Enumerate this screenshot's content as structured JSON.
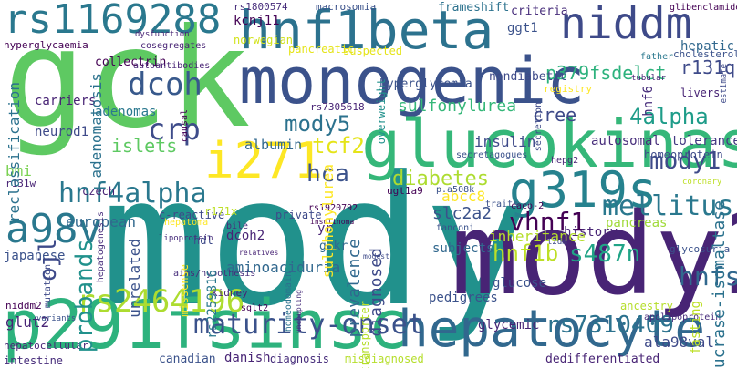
{
  "cloud": {
    "words": [
      {
        "id": "gck",
        "text": "gck",
        "color": "#5ec962"
      },
      {
        "id": "mody",
        "text": "mody",
        "color": "#21918c"
      },
      {
        "id": "mody2",
        "text": "mody2",
        "color": "#482475"
      },
      {
        "id": "monogenic",
        "text": "monogenic",
        "color": "#3b528b"
      },
      {
        "id": "glucokinase",
        "text": "glucokinase",
        "color": "#35b779"
      },
      {
        "id": "p291fsinsc",
        "text": "p291fsinsc",
        "color": "#2db27d"
      },
      {
        "id": "hepatocyte",
        "text": "hepatocyte",
        "color": "#31688e"
      },
      {
        "id": "hnf1beta",
        "text": "hnf1beta",
        "color": "#2c728e"
      },
      {
        "id": "niddm",
        "text": "niddm",
        "color": "#3e4a89"
      },
      {
        "id": "rs1169288",
        "text": "rs1169288",
        "color": "#2a788e"
      },
      {
        "id": "g319s",
        "text": "g319s",
        "color": "#26828e"
      },
      {
        "id": "i271",
        "text": "i271",
        "color": "#fde725"
      },
      {
        "id": "rs2464196",
        "text": "rs2464196",
        "color": "#addc30"
      },
      {
        "id": "hnf4alpha",
        "text": "hnf4alpha",
        "color": "#2a788e"
      },
      {
        "id": "mellitus",
        "text": "mellitus",
        "color": "#2a788e"
      },
      {
        "id": "maturity-onset",
        "text": "maturity-onset",
        "color": "#3b528b"
      },
      {
        "id": "dcoh",
        "text": "dcoh",
        "color": "#38598c"
      },
      {
        "id": "crp",
        "text": "crp",
        "color": "#3e4c8a"
      },
      {
        "id": "mody5",
        "text": "mody5",
        "color": "#2c728e"
      },
      {
        "id": "mody1",
        "text": "mody1",
        "color": "#3e4a89"
      },
      {
        "id": "4alpha",
        "text": "4alpha",
        "color": "#1e9c89"
      },
      {
        "id": "a98v",
        "text": "a98v",
        "color": "#2a788e"
      },
      {
        "id": "hnfs",
        "text": "hnfs",
        "color": "#31688e"
      },
      {
        "id": "s487n",
        "text": "s487n",
        "color": "#20a486"
      },
      {
        "id": "rs7310409",
        "text": "rs7310409",
        "color": "#2c728e"
      },
      {
        "id": "vhnf1",
        "text": "vhnf1",
        "color": "#440154"
      },
      {
        "id": "hca",
        "text": "hca",
        "color": "#3b528b"
      },
      {
        "id": "tcf2",
        "text": "tcf2",
        "color": "#e5e419"
      },
      {
        "id": "diabetes",
        "text": "diabetes",
        "color": "#addc30"
      },
      {
        "id": "p379fsdelct",
        "text": "p379fsdelct",
        "color": "#2db27d"
      },
      {
        "id": "hnf1b",
        "text": "hnf1b",
        "color": "#bddf26"
      },
      {
        "id": "ojl",
        "text": "ojl",
        "color": "#3e4a89"
      },
      {
        "id": "cree",
        "text": "cree",
        "color": "#21918c"
      },
      {
        "id": "sulfonylurea",
        "text": "sulfonylurea",
        "color": "#35b779"
      },
      {
        "id": "probands",
        "text": "probands",
        "color": "#3e4a89"
      },
      {
        "id": "r131q",
        "text": "r131q",
        "color": "#3e4a89"
      },
      {
        "id": "kcnj11",
        "text": "kcnj11",
        "color": "#440154"
      },
      {
        "id": "ggt1",
        "text": "ggt1",
        "color": "#3b528b"
      },
      {
        "id": "frameshift",
        "text": "frameshift",
        "color": "#2c728e"
      },
      {
        "id": "criteria",
        "text": "criteria",
        "color": "#472d7b"
      },
      {
        "id": "hepatic",
        "text": "hepatic",
        "color": "#31688e"
      },
      {
        "id": "hyperglycemia",
        "text": "hyperglycemia",
        "color": "#3b528b"
      },
      {
        "id": "nondiabetic",
        "text": "nondiabetic",
        "color": "#3e4a89"
      },
      {
        "id": "collectrin",
        "text": "collectrin",
        "color": "#440154"
      },
      {
        "id": "adenomas",
        "text": "adenomas",
        "color": "#2a788e"
      },
      {
        "id": "adenomatosis",
        "text": "adenomatosis",
        "color": "#2c728e"
      },
      {
        "id": "carriers",
        "text": "carriers",
        "color": "#482475"
      },
      {
        "id": "reclassification",
        "text": "reclassification",
        "color": "#2c728e"
      },
      {
        "id": "islets",
        "text": "islets",
        "color": "#5ec962"
      },
      {
        "id": "insulin",
        "text": "insulin",
        "color": "#3e4a89"
      },
      {
        "id": "albumin",
        "text": "albumin",
        "color": "#31688e"
      },
      {
        "id": "autosomal",
        "text": "autosomal",
        "color": "#472d7b"
      },
      {
        "id": "tolerance",
        "text": "tolerance",
        "color": "#443983"
      },
      {
        "id": "homeoprotein",
        "text": "homeoprotein",
        "color": "#3e4a89"
      },
      {
        "id": "european",
        "text": "european",
        "color": "#31688e"
      },
      {
        "id": "czech",
        "text": "czech",
        "color": "#482475"
      },
      {
        "id": "abcc8",
        "text": "abcc8",
        "color": "#fde725"
      },
      {
        "id": "pancreas",
        "text": "pancreas",
        "color": "#a0da39"
      },
      {
        "id": "history",
        "text": "history",
        "color": "#482475"
      },
      {
        "id": "inheritance",
        "text": "inheritance",
        "color": "#b5de2b"
      },
      {
        "id": "slc2a2",
        "text": "slc2a2",
        "color": "#3b528b"
      },
      {
        "id": "subjects",
        "text": "subjects",
        "color": "#31688e"
      },
      {
        "id": "prevalence",
        "text": "prevalence",
        "color": "#31688e"
      },
      {
        "id": "diagnosed",
        "text": "diagnosed",
        "color": "#3e4a89"
      },
      {
        "id": "dcoh2",
        "text": "dcoh2",
        "color": "#482475"
      },
      {
        "id": "yr",
        "text": "yr",
        "color": "#482475"
      },
      {
        "id": "gckr",
        "text": "gckr",
        "color": "#31688e"
      },
      {
        "id": "sulphonylurea",
        "text": "sulphonylurea",
        "color": "#fde725"
      },
      {
        "id": "aminoaciduria",
        "text": "aminoaciduria",
        "color": "#31688e"
      },
      {
        "id": "unrelated",
        "text": "unrelated",
        "color": "#3b528b"
      },
      {
        "id": "japanese",
        "text": "japanese",
        "color": "#3b528b"
      },
      {
        "id": "glut2",
        "text": "glut2",
        "color": "#482475"
      },
      {
        "id": "glucose",
        "text": "glucose",
        "color": "#3b528b"
      },
      {
        "id": "pedigrees",
        "text": "pedigrees",
        "color": "#3b528b"
      },
      {
        "id": "glycemic",
        "text": "glycemic",
        "color": "#482475"
      },
      {
        "id": "ala98val",
        "text": "ala98val",
        "color": "#3e4a89"
      },
      {
        "id": "sucrase-isomaltase",
        "text": "sucrase-isomaltase",
        "color": "#2c728e"
      },
      {
        "id": "fasting",
        "text": "fasting",
        "color": "#bddf26"
      },
      {
        "id": "intestine",
        "text": "intestine",
        "color": "#472d7b"
      },
      {
        "id": "canadian",
        "text": "canadian",
        "color": "#3b528b"
      },
      {
        "id": "danish",
        "text": "danish",
        "color": "#482475"
      },
      {
        "id": "diagnosis",
        "text": "diagnosis",
        "color": "#472d7b"
      },
      {
        "id": "misdiagnosed",
        "text": "misdiagnosed",
        "color": "#b5de2b"
      },
      {
        "id": "dedifferentiated",
        "text": "dedifferentiated",
        "color": "#482475"
      },
      {
        "id": "rs2259816",
        "text": "rs2259816",
        "color": "#2a788e"
      },
      {
        "id": "hdl",
        "text": "hdl",
        "color": "#3e4a89"
      },
      {
        "id": "c-reactive",
        "text": "c-reactive",
        "color": "#3e4a89"
      },
      {
        "id": "private",
        "text": "private",
        "color": "#3e4a89"
      },
      {
        "id": "r171x",
        "text": "r171x",
        "color": "#bddf26"
      },
      {
        "id": "bmi",
        "text": "bmi",
        "color": "#7ad151"
      },
      {
        "id": "neurod1",
        "text": "neurod1",
        "color": "#3e4a89"
      },
      {
        "id": "hyperglycaemia",
        "text": "hyperglycaemia",
        "color": "#440154"
      },
      {
        "id": "rs1800574",
        "text": "rs1800574",
        "color": "#472d7b"
      },
      {
        "id": "macrosomia",
        "text": "macrosomia",
        "color": "#3b528b"
      },
      {
        "id": "rs1920792",
        "text": "rs1920792",
        "color": "#440154"
      },
      {
        "id": "pancreatic",
        "text": "pancreatic",
        "color": "#e5e419"
      },
      {
        "id": "suspected",
        "text": "suspected",
        "color": "#e5e419"
      },
      {
        "id": "norwegian",
        "text": "norwegian",
        "color": "#d2e21b"
      },
      {
        "id": "glibenclamide",
        "text": "glibenclamide",
        "color": "#440154"
      },
      {
        "id": "cholesterol",
        "text": "cholesterol",
        "color": "#3b528b"
      },
      {
        "id": "hnf6",
        "text": "hnf6",
        "color": "#472d7b"
      },
      {
        "id": "livers",
        "text": "livers",
        "color": "#482475"
      },
      {
        "id": "estimate",
        "text": "estimate",
        "color": "#3e4a89"
      },
      {
        "id": "father",
        "text": "father",
        "color": "#2a788e"
      },
      {
        "id": "registry",
        "text": "registry",
        "color": "#fde725"
      },
      {
        "id": "overweight",
        "text": "overweight",
        "color": "#21918c"
      },
      {
        "id": "hepatocellular",
        "text": "hepatocellular",
        "color": "#482475"
      },
      {
        "id": "variants",
        "text": "variants",
        "color": "#3b528b"
      },
      {
        "id": "niddm2",
        "text": "niddm2",
        "color": "#440154"
      },
      {
        "id": "r131w",
        "text": "r131w",
        "color": "#482475"
      },
      {
        "id": "mutation",
        "text": "mutation",
        "color": "#3e4a89"
      },
      {
        "id": "homeodomain",
        "text": "homeodomain",
        "color": "#2c728e"
      },
      {
        "id": "uncoupling",
        "text": "uncoupling",
        "color": "#472d7b"
      },
      {
        "id": "kidney",
        "text": "kidney",
        "color": "#482475"
      },
      {
        "id": "transporter",
        "text": "transporter",
        "color": "#b5de2b"
      },
      {
        "id": "insulinoma",
        "text": "insulinoma",
        "color": "#440154"
      },
      {
        "id": "ugt1a9",
        "text": "ugt1a9",
        "color": "#440154"
      },
      {
        "id": "p.a508k",
        "text": "p.a508k",
        "color": "#3b528b"
      },
      {
        "id": "sglt2",
        "text": "sglt2",
        "color": "#440154"
      },
      {
        "id": "glycosuria",
        "text": "glycosuria",
        "color": "#3b528b"
      },
      {
        "id": "apolipoprotein",
        "text": "apolipoprotein",
        "color": "#472d7b"
      },
      {
        "id": "coronary",
        "text": "coronary",
        "color": "#bddf26"
      },
      {
        "id": "hepatoma",
        "text": "hepatoma",
        "color": "#fde725"
      },
      {
        "id": "hepatogenesis",
        "text": "hepatogenesis",
        "color": "#472d7b"
      },
      {
        "id": "missense",
        "text": "missense",
        "color": "#fde725"
      },
      {
        "id": "relatives",
        "text": "relatives",
        "color": "#482475"
      },
      {
        "id": "bile",
        "text": "bile",
        "color": "#472d7b"
      },
      {
        "id": "modest",
        "text": "modest",
        "color": "#3e4a89"
      },
      {
        "id": "secretagogues",
        "text": "secretagogues",
        "color": "#3b528b"
      },
      {
        "id": "hepg2",
        "text": "hepg2",
        "color": "#482475"
      },
      {
        "id": "secretion",
        "text": "secretion",
        "color": "#3e4a89"
      },
      {
        "id": "traits",
        "text": "traits",
        "color": "#3b528b"
      },
      {
        "id": "fanconi",
        "text": "fanconi",
        "color": "#3b528b"
      },
      {
        "id": "ancestry",
        "text": "ancestry",
        "color": "#b5de2b"
      },
      {
        "id": "lipoprotein",
        "text": "lipoprotein",
        "color": "#472d7b"
      },
      {
        "id": "causal",
        "text": "causal",
        "color": "#440154"
      },
      {
        "id": "cosegregates",
        "text": "cosegregates",
        "color": "#482475"
      },
      {
        "id": "autoantibodies",
        "text": "autoantibodies",
        "color": "#482475"
      },
      {
        "id": "t2dm",
        "text": "t2dm",
        "color": "#3e4a89"
      },
      {
        "id": "caco-2",
        "text": "caco-2",
        "color": "#440154"
      },
      {
        "id": "rs7305618",
        "text": "rs7305618",
        "color": "#482475"
      },
      {
        "id": "tubular",
        "text": "tubular",
        "color": "#482475"
      },
      {
        "id": "dysfunction",
        "text": "dysfunction",
        "color": "#482475"
      },
      {
        "id": "aims/hypothesis",
        "text": "aims/hypothesis",
        "color": "#472d7b"
      }
    ]
  }
}
